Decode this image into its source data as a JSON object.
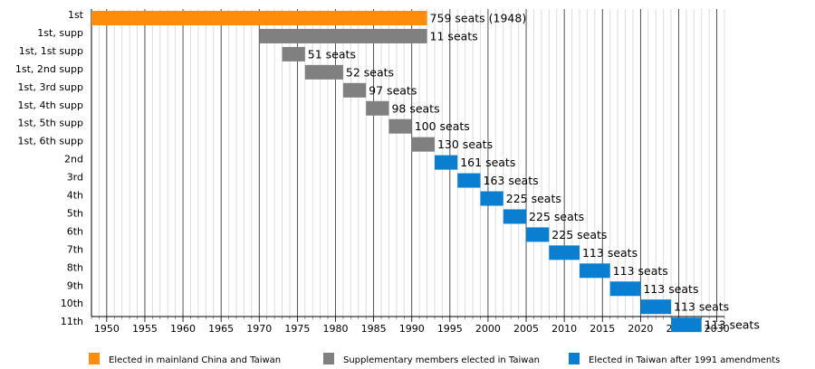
{
  "chart_data": {
    "type": "timeline",
    "categories": [
      "1st",
      "1st, supp",
      "1st, 1st supp",
      "1st, 2nd supp",
      "1st, 3rd supp",
      "1st, 4th supp",
      "1st, 5th supp",
      "1st, 6th supp",
      "2nd",
      "3rd",
      "4th",
      "5th",
      "6th",
      "7th",
      "8th",
      "9th",
      "10th",
      "11th"
    ],
    "series": [
      {
        "name": "Elected in mainland China and Taiwan",
        "color": "#ff8c0a",
        "starts": [
          1948,
          null,
          null,
          null,
          null,
          null,
          null,
          null,
          null,
          null,
          null,
          null,
          null,
          null,
          null,
          null,
          null,
          null
        ],
        "ends": [
          1992,
          null,
          null,
          null,
          null,
          null,
          null,
          null,
          null,
          null,
          null,
          null,
          null,
          null,
          null,
          null,
          null,
          null
        ],
        "labels": [
          "759 seats (1948)",
          null,
          null,
          null,
          null,
          null,
          null,
          null,
          null,
          null,
          null,
          null,
          null,
          null,
          null,
          null,
          null,
          null
        ]
      },
      {
        "name": "Supplementary members elected in Taiwan",
        "color": "#808080",
        "starts": [
          null,
          1970,
          1973,
          1976,
          1981,
          1984,
          1987,
          1990,
          null,
          null,
          null,
          null,
          null,
          null,
          null,
          null,
          null,
          null
        ],
        "ends": [
          null,
          1992,
          1976,
          1981,
          1984,
          1987,
          1990,
          1993,
          null,
          null,
          null,
          null,
          null,
          null,
          null,
          null,
          null,
          null
        ],
        "labels": [
          null,
          "11 seats",
          "51 seats",
          "52 seats",
          "97 seats",
          "98 seats",
          "100 seats",
          "130 seats",
          null,
          null,
          null,
          null,
          null,
          null,
          null,
          null,
          null,
          null
        ]
      },
      {
        "name": "Elected in Taiwan after 1991 amendments",
        "color": "#0a7fd2",
        "starts": [
          null,
          null,
          null,
          null,
          null,
          null,
          null,
          null,
          1993,
          1996,
          1999,
          2002,
          2005,
          2008,
          2012,
          2016,
          2020,
          2024
        ],
        "ends": [
          null,
          null,
          null,
          null,
          null,
          null,
          null,
          null,
          1996,
          1999,
          2002,
          2005,
          2008,
          2012,
          2016,
          2020,
          2024,
          2028
        ],
        "labels": [
          null,
          null,
          null,
          null,
          null,
          null,
          null,
          null,
          "161 seats",
          "163 seats",
          "225 seats",
          "225 seats",
          "225 seats",
          "113 seats",
          "113 seats",
          "113 seats",
          "113 seats",
          "113 seats"
        ]
      }
    ],
    "xlim": [
      1948,
      2031
    ],
    "xticks": [
      1950,
      1955,
      1960,
      1965,
      1970,
      1975,
      1980,
      1985,
      1990,
      1995,
      2000,
      2005,
      2010,
      2015,
      2020,
      2025,
      2030
    ],
    "grid": true,
    "minor_grid": true,
    "legend": "bottom"
  }
}
